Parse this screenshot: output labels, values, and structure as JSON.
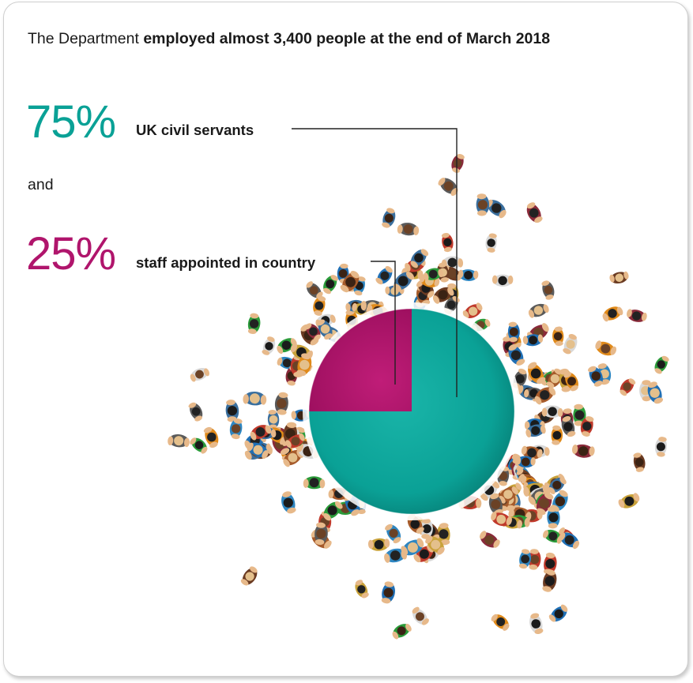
{
  "headline": {
    "lead": "The Department ",
    "emphasis": "employed almost 3,400 people at the end of March 2018"
  },
  "connector_word": "and",
  "colors": {
    "uk_civil_servants": "#0aa196",
    "staff_appointed_in_country": "#b0156c"
  },
  "chart_data": {
    "type": "pie",
    "title": "",
    "slices": [
      {
        "label": "UK civil servants",
        "display": "75%",
        "value": 75,
        "color": "#0aa196"
      },
      {
        "label": "staff appointed in country",
        "display": "25%",
        "value": 25,
        "color": "#b0156c"
      }
    ],
    "legend": "callout labels with leader lines to the left of the pie",
    "decoration": "top-down illustrated crowd of people surrounding the pie"
  }
}
